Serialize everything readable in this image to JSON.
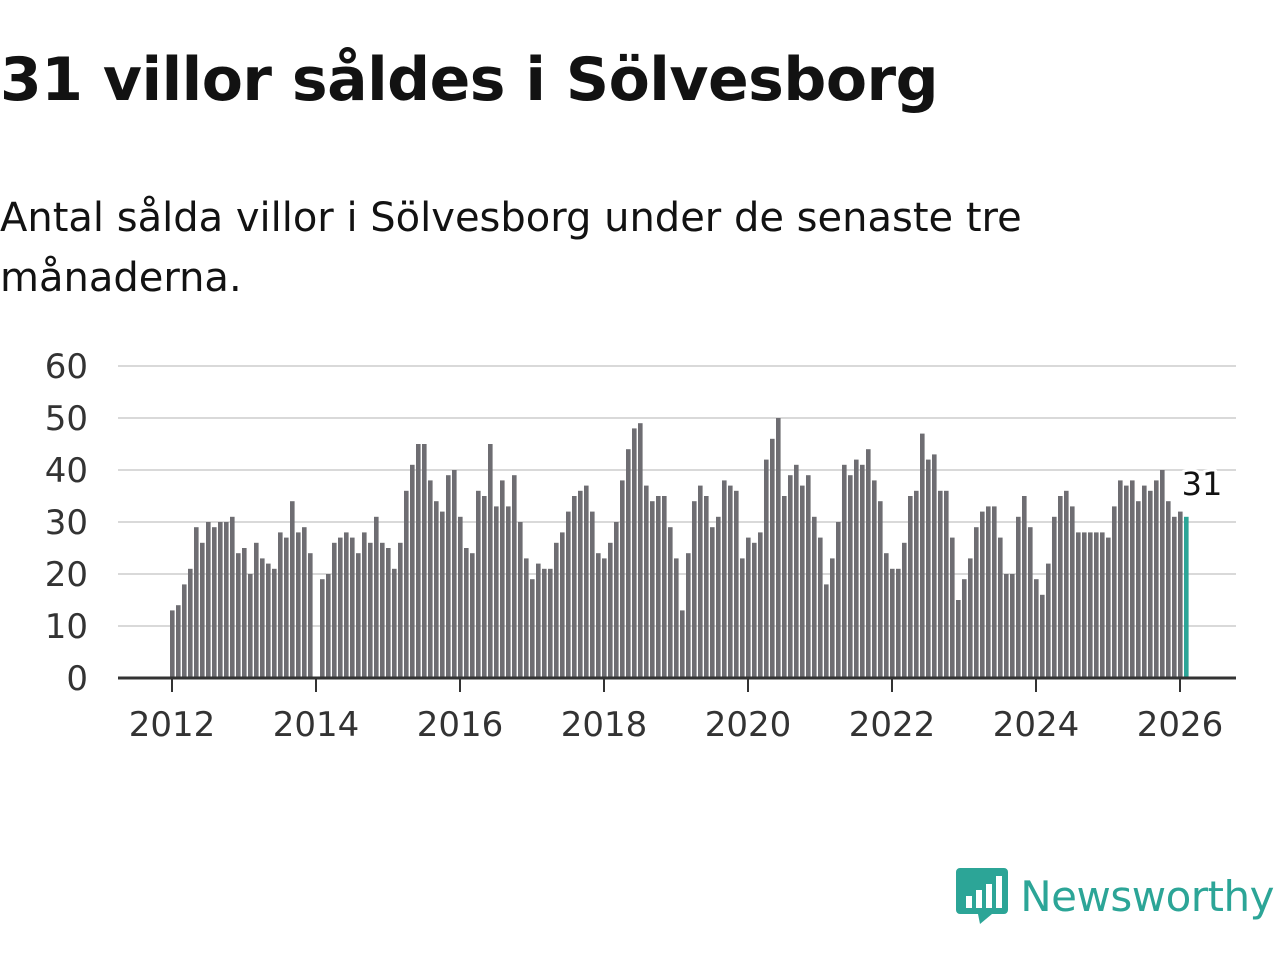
{
  "header": {
    "title": "31 villor såldes i Sölvesborg",
    "subtitle": "Antal sålda villor i Sölvesborg under de senaste tre månaderna."
  },
  "brand": {
    "name": "Newsworthy",
    "color": "#2ca597",
    "icon": "chart-speech-bubble-icon"
  },
  "colors": {
    "bar": "#6e6d72",
    "highlight": "#2ca597",
    "grid": "#d9d9d9",
    "axis": "#333333"
  },
  "chart_data": {
    "type": "bar",
    "title": "31 villor såldes i Sölvesborg",
    "xlabel": "",
    "ylabel": "",
    "ylim": [
      0,
      60
    ],
    "yticks": [
      0,
      10,
      20,
      30,
      40,
      50,
      60
    ],
    "xticks": [
      "2012",
      "2014",
      "2016",
      "2018",
      "2020",
      "2022",
      "2024",
      "2026"
    ],
    "start": "2012-01",
    "series": [
      {
        "name": "Sålda villor",
        "values": [
          13,
          14,
          18,
          21,
          29,
          26,
          30,
          29,
          30,
          30,
          31,
          24,
          25,
          20,
          26,
          23,
          22,
          21,
          28,
          27,
          34,
          28,
          29,
          24,
          null,
          19,
          20,
          26,
          27,
          28,
          27,
          24,
          28,
          26,
          31,
          26,
          25,
          21,
          26,
          36,
          41,
          45,
          45,
          38,
          34,
          32,
          39,
          40,
          31,
          25,
          24,
          36,
          35,
          45,
          33,
          38,
          33,
          39,
          30,
          23,
          19,
          22,
          21,
          21,
          26,
          28,
          32,
          35,
          36,
          37,
          32,
          24,
          23,
          26,
          30,
          38,
          44,
          48,
          49,
          37,
          34,
          35,
          35,
          29,
          23,
          13,
          24,
          34,
          37,
          35,
          29,
          31,
          38,
          37,
          36,
          23,
          27,
          26,
          28,
          42,
          46,
          50,
          35,
          39,
          41,
          37,
          39,
          31,
          27,
          18,
          23,
          30,
          41,
          39,
          42,
          41,
          44,
          38,
          34,
          24,
          21,
          21,
          26,
          35,
          36,
          47,
          42,
          43,
          36,
          36,
          27,
          15,
          19,
          23,
          29,
          32,
          33,
          33,
          27,
          20,
          20,
          31,
          35,
          29,
          19,
          16,
          22,
          31,
          35,
          36,
          33,
          28,
          28,
          28,
          28,
          28,
          27,
          33,
          38,
          37,
          38,
          34,
          37,
          36,
          38,
          40,
          34,
          31,
          32,
          31
        ]
      }
    ],
    "highlight": {
      "label": "31",
      "value": 31,
      "period": "2026-01"
    }
  }
}
